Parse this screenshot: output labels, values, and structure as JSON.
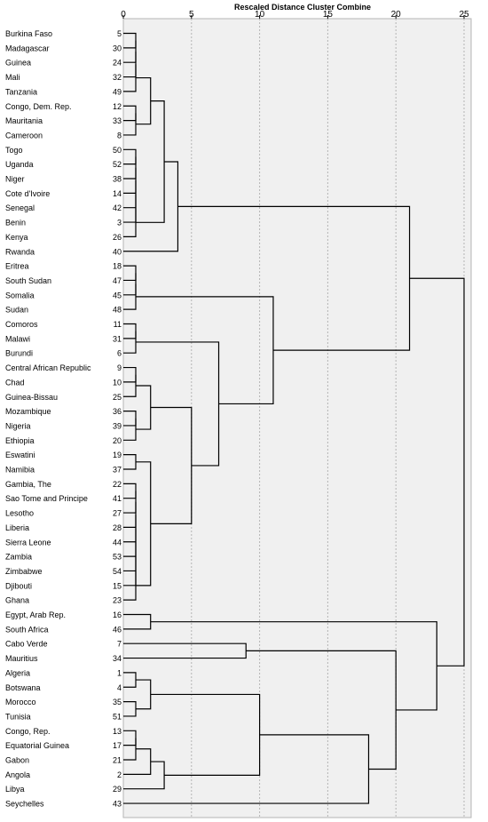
{
  "chart_data": {
    "type": "dendrogram",
    "title": "Rescaled Distance Cluster Combine",
    "xlim": [
      0,
      25
    ],
    "x_ticks": [
      0,
      5,
      10,
      15,
      20,
      25
    ],
    "leaves": [
      {
        "label": "Burkina Faso",
        "id": 5
      },
      {
        "label": "Madagascar",
        "id": 30
      },
      {
        "label": "Guinea",
        "id": 24
      },
      {
        "label": "Mali",
        "id": 32
      },
      {
        "label": "Tanzania",
        "id": 49
      },
      {
        "label": "Congo, Dem. Rep.",
        "id": 12
      },
      {
        "label": "Mauritania",
        "id": 33
      },
      {
        "label": "Cameroon",
        "id": 8
      },
      {
        "label": "Togo",
        "id": 50
      },
      {
        "label": "Uganda",
        "id": 52
      },
      {
        "label": "Niger",
        "id": 38
      },
      {
        "label": "Cote d'Ivoire",
        "id": 14
      },
      {
        "label": "Senegal",
        "id": 42
      },
      {
        "label": "Benin",
        "id": 3
      },
      {
        "label": "Kenya",
        "id": 26
      },
      {
        "label": "Rwanda",
        "id": 40
      },
      {
        "label": "Eritrea",
        "id": 18
      },
      {
        "label": "South Sudan",
        "id": 47
      },
      {
        "label": "Somalia",
        "id": 45
      },
      {
        "label": "Sudan",
        "id": 48
      },
      {
        "label": "Comoros",
        "id": 11
      },
      {
        "label": "Malawi",
        "id": 31
      },
      {
        "label": "Burundi",
        "id": 6
      },
      {
        "label": "Central African Republic",
        "id": 9
      },
      {
        "label": "Chad",
        "id": 10
      },
      {
        "label": "Guinea-Bissau",
        "id": 25
      },
      {
        "label": "Mozambique",
        "id": 36
      },
      {
        "label": "Nigeria",
        "id": 39
      },
      {
        "label": "Ethiopia",
        "id": 20
      },
      {
        "label": "Eswatini",
        "id": 19
      },
      {
        "label": "Namibia",
        "id": 37
      },
      {
        "label": "Gambia, The",
        "id": 22
      },
      {
        "label": "Sao Tome and Principe",
        "id": 41
      },
      {
        "label": "Lesotho",
        "id": 27
      },
      {
        "label": "Liberia",
        "id": 28
      },
      {
        "label": "Sierra Leone",
        "id": 44
      },
      {
        "label": "Zambia",
        "id": 53
      },
      {
        "label": "Zimbabwe",
        "id": 54
      },
      {
        "label": "Djibouti",
        "id": 15
      },
      {
        "label": "Ghana",
        "id": 23
      },
      {
        "label": "Egypt, Arab Rep.",
        "id": 16
      },
      {
        "label": "South Africa",
        "id": 46
      },
      {
        "label": "Cabo Verde",
        "id": 7
      },
      {
        "label": "Mauritius",
        "id": 34
      },
      {
        "label": "Algeria",
        "id": 1
      },
      {
        "label": "Botswana",
        "id": 4
      },
      {
        "label": "Morocco",
        "id": 35
      },
      {
        "label": "Tunisia",
        "id": 51
      },
      {
        "label": "Congo, Rep.",
        "id": 13
      },
      {
        "label": "Equatorial Guinea",
        "id": 17
      },
      {
        "label": "Gabon",
        "id": 21
      },
      {
        "label": "Angola",
        "id": 2
      },
      {
        "label": "Libya",
        "id": 29
      },
      {
        "label": "Seychelles",
        "id": 43
      }
    ],
    "merges": [
      {
        "a": "L0",
        "b": "L1",
        "h": 1
      },
      {
        "a": "M0",
        "b": "L2",
        "h": 1
      },
      {
        "a": "M1",
        "b": "L3",
        "h": 1
      },
      {
        "a": "M2",
        "b": "L4",
        "h": 1
      },
      {
        "a": "L5",
        "b": "L6",
        "h": 1
      },
      {
        "a": "M4",
        "b": "L7",
        "h": 1
      },
      {
        "a": "L8",
        "b": "L9",
        "h": 1
      },
      {
        "a": "M6",
        "b": "L10",
        "h": 1
      },
      {
        "a": "M7",
        "b": "L11",
        "h": 1
      },
      {
        "a": "M8",
        "b": "L12",
        "h": 1
      },
      {
        "a": "M9",
        "b": "L13",
        "h": 1
      },
      {
        "a": "M10",
        "b": "L14",
        "h": 1
      },
      {
        "a": "M3",
        "b": "M5",
        "h": 2
      },
      {
        "a": "M12",
        "b": "M11",
        "h": 3
      },
      {
        "a": "M13",
        "b": "L15",
        "h": 4
      },
      {
        "a": "L16",
        "b": "L17",
        "h": 1
      },
      {
        "a": "M15",
        "b": "L18",
        "h": 1
      },
      {
        "a": "M16",
        "b": "L19",
        "h": 1
      },
      {
        "a": "L20",
        "b": "L21",
        "h": 1
      },
      {
        "a": "M18",
        "b": "L22",
        "h": 1
      },
      {
        "a": "L23",
        "b": "L24",
        "h": 1
      },
      {
        "a": "M20",
        "b": "L25",
        "h": 1
      },
      {
        "a": "L26",
        "b": "L27",
        "h": 1
      },
      {
        "a": "M22",
        "b": "L28",
        "h": 1
      },
      {
        "a": "M21",
        "b": "M23",
        "h": 2
      },
      {
        "a": "L29",
        "b": "L30",
        "h": 1
      },
      {
        "a": "L31",
        "b": "L32",
        "h": 1
      },
      {
        "a": "M26",
        "b": "L33",
        "h": 1
      },
      {
        "a": "M27",
        "b": "L34",
        "h": 1
      },
      {
        "a": "M28",
        "b": "L35",
        "h": 1
      },
      {
        "a": "M29",
        "b": "L36",
        "h": 1
      },
      {
        "a": "M30",
        "b": "L37",
        "h": 1
      },
      {
        "a": "M31",
        "b": "L38",
        "h": 1
      },
      {
        "a": "M32",
        "b": "L39",
        "h": 1
      },
      {
        "a": "M25",
        "b": "M33",
        "h": 2
      },
      {
        "a": "M24",
        "b": "M34",
        "h": 5
      },
      {
        "a": "M19",
        "b": "M35",
        "h": 7
      },
      {
        "a": "M17",
        "b": "M36",
        "h": 11
      },
      {
        "a": "M14",
        "b": "M37",
        "h": 21
      },
      {
        "a": "L40",
        "b": "L41",
        "h": 2
      },
      {
        "a": "L42",
        "b": "L43",
        "h": 9
      },
      {
        "a": "L44",
        "b": "L45",
        "h": 1
      },
      {
        "a": "L46",
        "b": "L47",
        "h": 1
      },
      {
        "a": "M41",
        "b": "M42",
        "h": 2
      },
      {
        "a": "L48",
        "b": "L49",
        "h": 1
      },
      {
        "a": "M44",
        "b": "L50",
        "h": 1
      },
      {
        "a": "M45",
        "b": "L51",
        "h": 2
      },
      {
        "a": "M46",
        "b": "L52",
        "h": 3
      },
      {
        "a": "M43",
        "b": "M47",
        "h": 10
      },
      {
        "a": "M48",
        "b": "L53",
        "h": 18
      },
      {
        "a": "M40",
        "b": "M49",
        "h": 20
      },
      {
        "a": "M39",
        "b": "M50",
        "h": 23
      },
      {
        "a": "M38",
        "b": "M51",
        "h": 25
      }
    ]
  }
}
